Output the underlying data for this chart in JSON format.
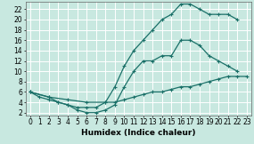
{
  "bg_color": "#c8e8e0",
  "grid_color": "#ffffff",
  "line_color": "#1a7068",
  "xlabel": "Humidex (Indice chaleur)",
  "xlabel_fontsize": 6.5,
  "tick_fontsize": 5.5,
  "xlim": [
    -0.5,
    23.5
  ],
  "ylim": [
    1.5,
    23.5
  ],
  "xticks": [
    0,
    1,
    2,
    3,
    4,
    5,
    6,
    7,
    8,
    9,
    10,
    11,
    12,
    13,
    14,
    15,
    16,
    17,
    18,
    19,
    20,
    21,
    22,
    23
  ],
  "yticks": [
    2,
    4,
    6,
    8,
    10,
    12,
    14,
    16,
    18,
    20,
    22
  ],
  "curve1_x": [
    0,
    1,
    2,
    3,
    4,
    5,
    6,
    7,
    8,
    9,
    10,
    11,
    12,
    13,
    14,
    15,
    16,
    17,
    18,
    19,
    20,
    21,
    22
  ],
  "curve1_y": [
    6,
    5,
    4.5,
    4,
    3.5,
    3,
    3,
    3,
    4,
    7,
    11,
    14,
    16,
    18,
    20,
    21,
    23,
    23,
    22,
    21,
    21,
    21,
    20
  ],
  "curve2_x": [
    0,
    2,
    3,
    4,
    5,
    6,
    7,
    8,
    9,
    10,
    11,
    12,
    13,
    14,
    15,
    16,
    17,
    18,
    19,
    20,
    21,
    22
  ],
  "curve2_y": [
    6,
    5,
    4,
    3.5,
    2.5,
    2,
    2,
    2.5,
    3.5,
    7,
    10,
    12,
    12,
    13,
    13,
    16,
    16,
    15,
    13,
    12,
    11,
    10
  ],
  "curve3_x": [
    0,
    2,
    4,
    6,
    8,
    9,
    10,
    11,
    12,
    13,
    14,
    15,
    16,
    17,
    18,
    19,
    20,
    21,
    22,
    23
  ],
  "curve3_y": [
    6,
    5,
    4.5,
    4,
    4,
    4,
    4.5,
    5,
    5.5,
    6,
    6,
    6.5,
    7,
    7,
    7.5,
    8,
    8.5,
    9,
    9,
    9
  ]
}
